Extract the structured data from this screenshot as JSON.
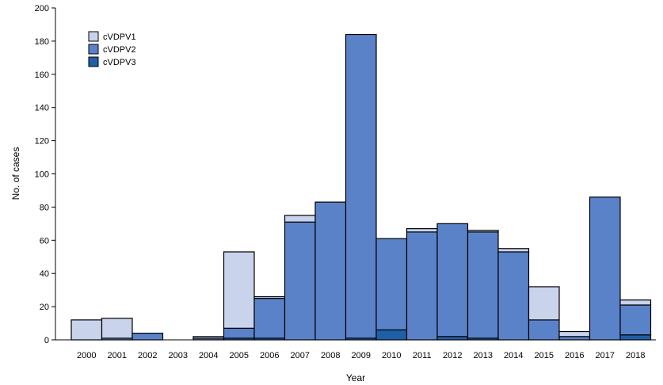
{
  "chart_data": {
    "type": "bar",
    "stacked": true,
    "categories": [
      "2000",
      "2001",
      "2002",
      "2003",
      "2004",
      "2005",
      "2006",
      "2007",
      "2008",
      "2009",
      "2010",
      "2011",
      "2012",
      "2013",
      "2014",
      "2015",
      "2016",
      "2017",
      "2018"
    ],
    "series": [
      {
        "name": "cVDPV3",
        "color": "#1f5fa8",
        "values": [
          0,
          0,
          0,
          0,
          0,
          1,
          1,
          0,
          0,
          1,
          6,
          0,
          2,
          1,
          0,
          0,
          0,
          0,
          3
        ]
      },
      {
        "name": "cVDPV2",
        "color": "#5a82c9",
        "values": [
          0,
          1,
          4,
          0,
          1,
          6,
          24,
          71,
          83,
          183,
          55,
          65,
          68,
          64,
          53,
          12,
          2,
          86,
          18
        ]
      },
      {
        "name": "cVDPV1",
        "color": "#c9d3ec",
        "values": [
          12,
          12,
          0,
          0,
          1,
          46,
          1,
          4,
          0,
          0,
          0,
          2,
          0,
          1,
          2,
          20,
          3,
          0,
          3
        ]
      }
    ],
    "legend_order": [
      "cVDPV1",
      "cVDPV2",
      "cVDPV3"
    ],
    "legend_position": "top-left",
    "xlabel": "Year",
    "ylabel": "No. of cases",
    "ylim": [
      0,
      200
    ],
    "yticks": [
      0,
      20,
      40,
      60,
      80,
      100,
      120,
      140,
      160,
      180,
      200
    ],
    "grid": false
  }
}
